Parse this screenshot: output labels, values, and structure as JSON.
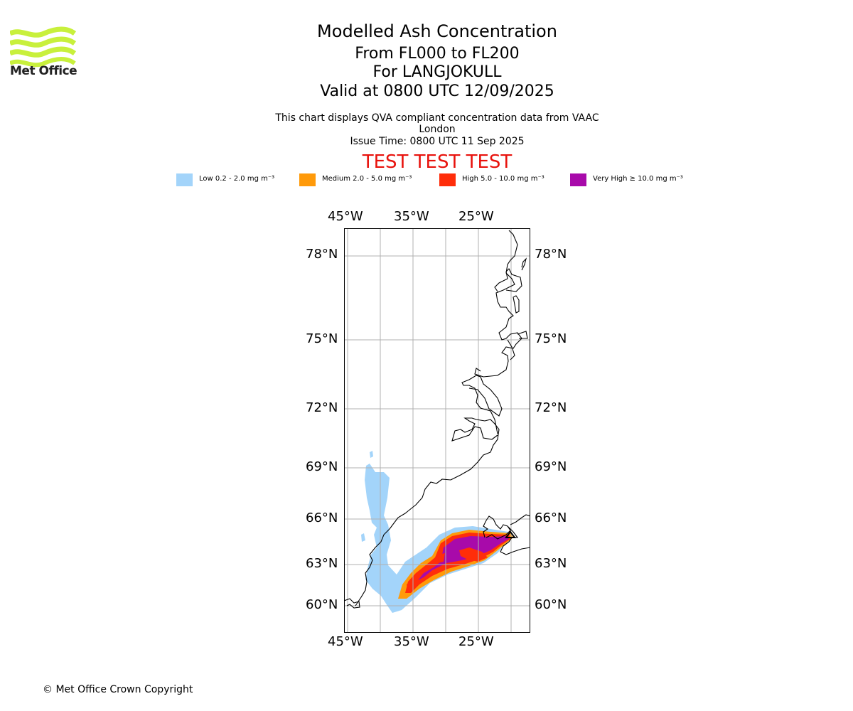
{
  "header": {
    "logo_text": "Met Office",
    "title": "Modelled Ash Concentration",
    "levels": "From FL000 to FL200",
    "volcano": "For LANGJOKULL",
    "valid": "Valid at 0800 UTC 12/09/2025",
    "info": "This chart displays QVA compliant concentration data from VAAC London",
    "issue_time": "Issue Time: 0800 UTC 11 Sep 2025",
    "test_banner": "TEST TEST TEST"
  },
  "legend": {
    "items": [
      {
        "label": "Low 0.2 - 2.0 mg m⁻³",
        "color": "#a3d4fa"
      },
      {
        "label": "Medium 2.0 - 5.0 mg m⁻³",
        "color": "#ff9a0a"
      },
      {
        "label": "High 5.0 - 10.0 mg m⁻³",
        "color": "#ff2d0a"
      },
      {
        "label": "Very High ≥ 10.0 mg m⁻³",
        "color": "#a80aaa"
      }
    ]
  },
  "map": {
    "lon_labels": [
      "45°W",
      "35°W",
      "25°W"
    ],
    "lat_labels": [
      "78°N",
      "75°N",
      "72°N",
      "69°N",
      "66°N",
      "63°N",
      "60°N"
    ],
    "coast_color": "#000000",
    "grid_color": "#b0b0b0"
  },
  "footer": {
    "copyright": "© Met Office Crown Copyright"
  }
}
